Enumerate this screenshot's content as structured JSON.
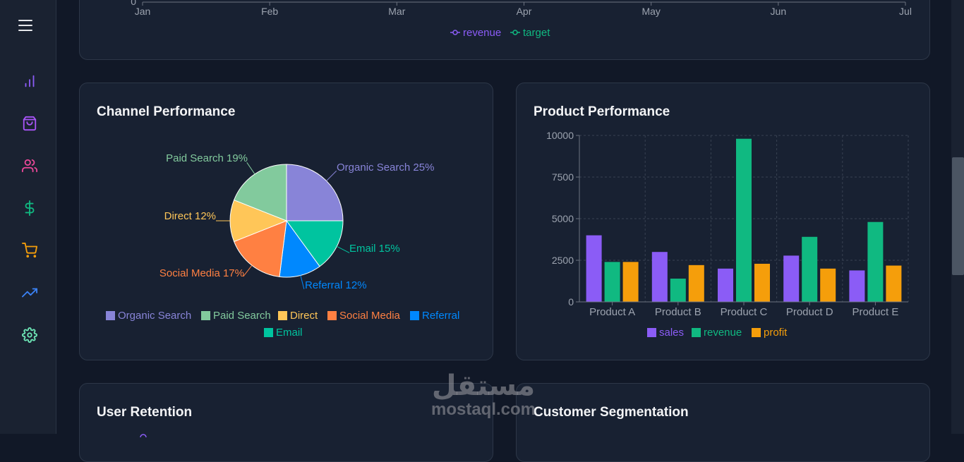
{
  "app": {
    "accent": "#8b5cf6"
  },
  "sidebar": {
    "items": [
      {
        "icon": "bar-chart-icon",
        "color": "#8b5cf6"
      },
      {
        "icon": "shopping-bag-icon",
        "color": "#a855f7"
      },
      {
        "icon": "users-icon",
        "color": "#ec4899"
      },
      {
        "icon": "dollar-icon",
        "color": "#10b981"
      },
      {
        "icon": "shopping-cart-icon",
        "color": "#f59e0b"
      },
      {
        "icon": "trending-up-icon",
        "color": "#3b82f6"
      },
      {
        "icon": "settings-icon",
        "color": "#6ee7b7"
      }
    ]
  },
  "revenue_chart": {
    "y_tick_visible": "0",
    "x_ticks": [
      "Jan",
      "Feb",
      "Mar",
      "Apr",
      "May",
      "Jun",
      "Jul"
    ],
    "legend": [
      {
        "label": "revenue",
        "color": "#8b5cf6"
      },
      {
        "label": "target",
        "color": "#10b981"
      }
    ]
  },
  "channel": {
    "title": "Channel Performance",
    "labels": [
      {
        "text": "Organic Search 25%"
      },
      {
        "text": "Email 15%"
      },
      {
        "text": "Referral 12%"
      },
      {
        "text": "Social Media 17%"
      },
      {
        "text": "Direct 12%"
      },
      {
        "text": "Paid Search 19%"
      }
    ],
    "legend": [
      "Organic Search",
      "Paid Search",
      "Direct",
      "Social Media",
      "Referral",
      "Email"
    ]
  },
  "product": {
    "title": "Product Performance",
    "legend": [
      "sales",
      "revenue",
      "profit"
    ]
  },
  "retention": {
    "title": "User Retention"
  },
  "segmentation": {
    "title": "Customer Segmentation"
  },
  "watermark": {
    "arabic": "مستقل",
    "latin": "mostaql.com"
  },
  "chart_data": [
    {
      "type": "pie",
      "title": "Channel Performance",
      "categories": [
        "Organic Search",
        "Email",
        "Referral",
        "Social Media",
        "Direct",
        "Paid Search"
      ],
      "values": [
        25,
        15,
        12,
        17,
        12,
        19
      ],
      "colors": [
        "#8884d8",
        "#00c49f",
        "#0088fe",
        "#ff8042",
        "#ffc658",
        "#82ca9d"
      ],
      "legend": "bottom"
    },
    {
      "type": "bar",
      "title": "Product Performance",
      "categories": [
        "Product A",
        "Product B",
        "Product C",
        "Product D",
        "Product E"
      ],
      "series": [
        {
          "name": "sales",
          "color": "#8b5cf6",
          "values": [
            4000,
            3000,
            2000,
            2780,
            1890
          ]
        },
        {
          "name": "revenue",
          "color": "#10b981",
          "values": [
            2400,
            1398,
            9800,
            3908,
            4800
          ]
        },
        {
          "name": "profit",
          "color": "#f59e0b",
          "values": [
            2400,
            2210,
            2290,
            2000,
            2181
          ]
        }
      ],
      "y_ticks": [
        0,
        2500,
        5000,
        7500,
        10000
      ],
      "ylim": [
        0,
        10000
      ],
      "grid": true,
      "legend": "bottom"
    }
  ]
}
